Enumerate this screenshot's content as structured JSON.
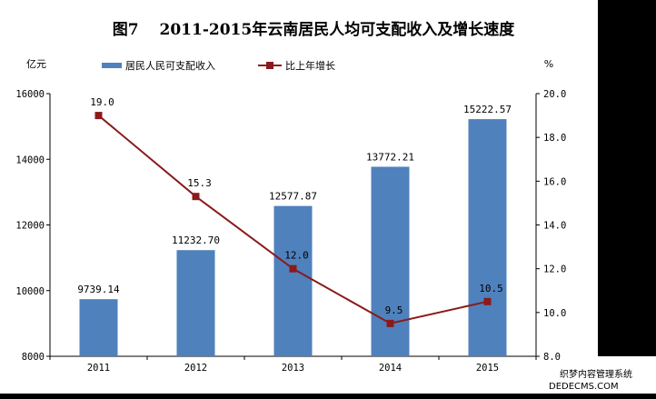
{
  "chart_data": {
    "type": "bar+line",
    "title": "图7　 2011-2015年云南居民人均可支配收入及增长速度",
    "categories": [
      "2011",
      "2012",
      "2013",
      "2014",
      "2015"
    ],
    "y_left_unit": "亿元",
    "y_right_unit": "%",
    "y_left_range": [
      8000,
      16000
    ],
    "y_left_ticks": [
      "16000",
      "14000",
      "12000",
      "10000",
      "8000"
    ],
    "y_right_range": [
      8.0,
      20.0
    ],
    "y_right_ticks": [
      "20.0",
      "18.0",
      "16.0",
      "14.0",
      "12.0",
      "10.0",
      "8.0"
    ],
    "legend_position": "top",
    "series": [
      {
        "name": "居民人民可支配收入",
        "type": "bar",
        "axis": "left",
        "color": "#4f81bd",
        "values": [
          9739.14,
          11232.7,
          12577.87,
          13772.21,
          15222.57
        ],
        "labels": [
          "9739.14",
          "11232.70",
          "12577.87",
          "13772.21",
          "15222.57"
        ]
      },
      {
        "name": "比上年增长",
        "type": "line",
        "axis": "right",
        "color": "#8b1a1a",
        "values": [
          19.0,
          15.3,
          12.0,
          9.5,
          10.5
        ],
        "labels": [
          "19.0",
          "15.3",
          "12.0",
          "9.5",
          "10.5"
        ]
      }
    ]
  },
  "watermark": {
    "line1": "织梦内容管理系统",
    "line2": "DEDECMS.COM"
  }
}
